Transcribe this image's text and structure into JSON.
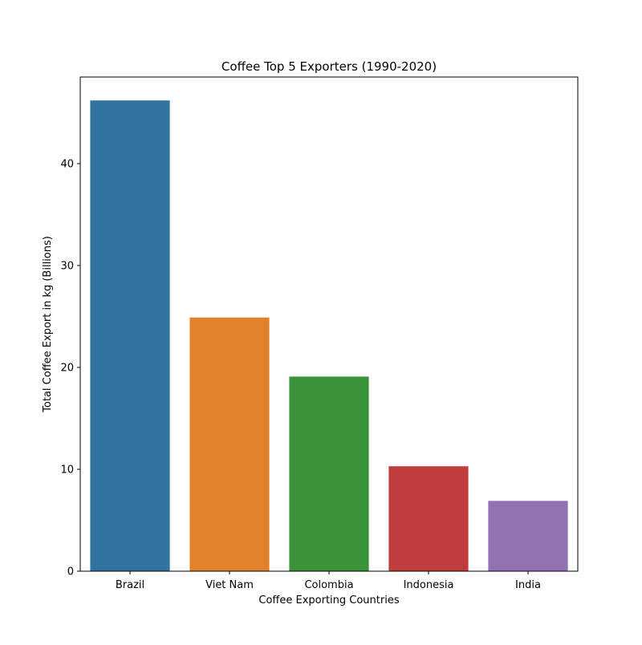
{
  "chart_data": {
    "type": "bar",
    "title": "Coffee Top 5 Exporters (1990-2020)",
    "xlabel": "Coffee Exporting Countries",
    "ylabel": "Total Coffee Export in kg (Billions)",
    "categories": [
      "Brazil",
      "Viet Nam",
      "Colombia",
      "Indonesia",
      "India"
    ],
    "values": [
      46.2,
      24.9,
      19.1,
      10.3,
      6.9
    ],
    "colors": [
      "#3274a1",
      "#e1812c",
      "#3a923a",
      "#c03d3e",
      "#9372b2"
    ],
    "ylim": [
      0,
      48.5
    ],
    "yticks": [
      0,
      10,
      20,
      30,
      40
    ],
    "grid": false,
    "legend": "none"
  }
}
